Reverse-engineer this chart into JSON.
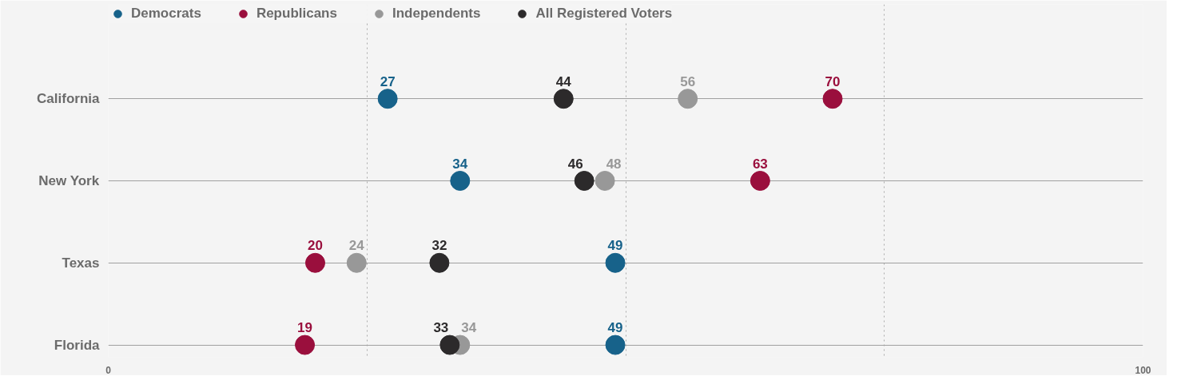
{
  "chart_data": {
    "type": "scatter",
    "orientation": "horizontal",
    "categories": [
      "California",
      "New York",
      "Texas",
      "Florida"
    ],
    "series": [
      {
        "name": "Democrats",
        "color": "#17628a",
        "values": [
          27,
          34,
          49,
          49
        ]
      },
      {
        "name": "Republicans",
        "color": "#9a0f3d",
        "values": [
          70,
          63,
          20,
          19
        ]
      },
      {
        "name": "Independents",
        "color": "#989898",
        "values": [
          56,
          48,
          24,
          34
        ]
      },
      {
        "name": "All Registered Voters",
        "color": "#2c2a2b",
        "values": [
          44,
          46,
          32,
          33
        ]
      }
    ],
    "xlim": [
      0,
      100
    ],
    "xticks": [
      0,
      {
        "value": 25,
        "label": null
      },
      {
        "value": 50,
        "label": null
      },
      {
        "value": 75,
        "label": null
      },
      100
    ],
    "grid": true,
    "legend": "top left",
    "marker": "circle",
    "data_labels": true
  }
}
